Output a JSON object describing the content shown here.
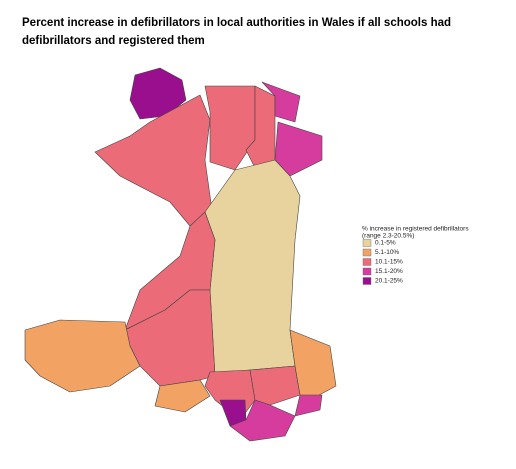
{
  "title": "Percent increase in defibrillators in local authorities in Wales if all schools had defibrillators and registered them",
  "legend": {
    "title": "% increase in registered defibrillators",
    "subtitle": "(range 2.3-20.5%)",
    "items": [
      {
        "label": "0.1-5%",
        "color": "#e8d39e"
      },
      {
        "label": "5.1-10%",
        "color": "#f2a262"
      },
      {
        "label": "10.1-15%",
        "color": "#ec6b78"
      },
      {
        "label": "15.1-20%",
        "color": "#d63c9e"
      },
      {
        "label": "20.1-25%",
        "color": "#9a0f8e"
      }
    ]
  }
}
